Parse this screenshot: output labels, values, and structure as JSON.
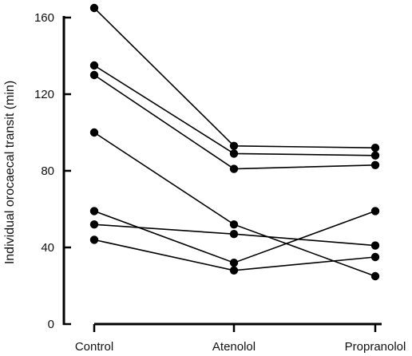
{
  "chart_data": {
    "type": "line",
    "title": "",
    "xlabel": "",
    "ylabel": "Individual orocaecal transit (min)",
    "categories": [
      "Control",
      "Atenolol",
      "Propranolol"
    ],
    "ylim": [
      0,
      160
    ],
    "yticks": [
      0,
      40,
      80,
      120,
      160
    ],
    "grid": false,
    "legend": "none",
    "series": [
      {
        "values": [
          165,
          93,
          92
        ]
      },
      {
        "values": [
          135,
          89,
          88
        ]
      },
      {
        "values": [
          130,
          81,
          83
        ]
      },
      {
        "values": [
          100,
          52,
          25
        ]
      },
      {
        "values": [
          59,
          32,
          59
        ]
      },
      {
        "values": [
          52,
          47,
          41
        ]
      },
      {
        "values": [
          44,
          28,
          35
        ]
      }
    ],
    "colors": {
      "ink": "#000000"
    }
  }
}
